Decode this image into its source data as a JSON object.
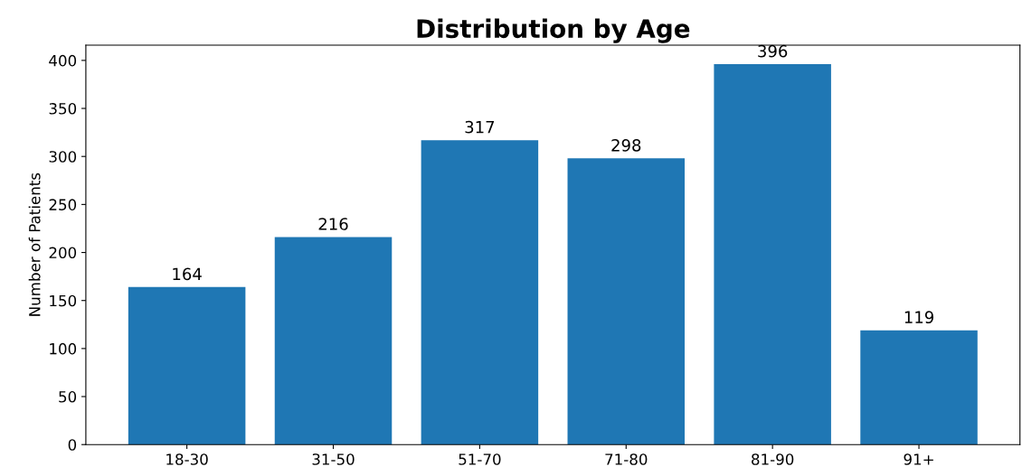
{
  "chart_data": {
    "type": "bar",
    "title": "Distribution by Age",
    "ylabel": "Number of Patients",
    "categories": [
      "18-30",
      "31-50",
      "51-70",
      "71-80",
      "81-90",
      "91+"
    ],
    "values": [
      164,
      216,
      317,
      298,
      396,
      119
    ],
    "color": "#1f77b4",
    "ylim": [
      0,
      415.8
    ],
    "yticks": [
      0,
      50,
      100,
      150,
      200,
      250,
      300,
      350,
      400
    ],
    "data_labels": true,
    "grid": false
  }
}
